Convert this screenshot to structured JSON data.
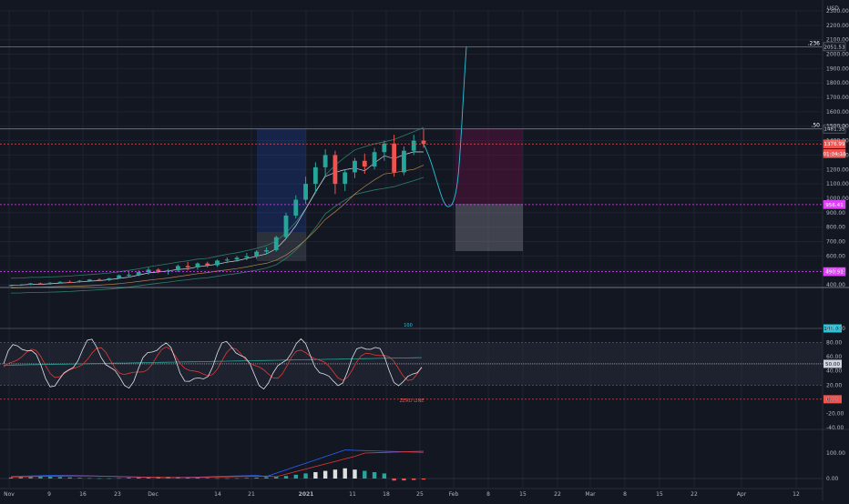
{
  "currency": "USD",
  "colors": {
    "background": "#131722",
    "up": "#26a69a",
    "down": "#ef5350",
    "grid": "#1f2330",
    "axis_text": "#b2b5be",
    "rsi": "#e0e3eb",
    "signal": "#e53935",
    "ema_line": "#2e7d6b",
    "magenta": "#e040fb",
    "teal": "#26c6da",
    "long_box": "#2962ff",
    "short_box": "#880e4f"
  },
  "price_axis": {
    "ticks": [
      "2300.00",
      "2200.00",
      "2100.00",
      "2000.00",
      "1900.00",
      "1800.00",
      "1700.00",
      "1600.00",
      "1500.00",
      "1400.00",
      "1300.00",
      "1200.00",
      "1100.00",
      "1000.00",
      "900.00",
      "800.00",
      "700.00",
      "600.00",
      "500.00",
      "400.00"
    ],
    "labels": [
      {
        "text": "2051.53",
        "kind": "box",
        "value": 2051.53
      },
      {
        "text": "1481.35",
        "kind": "box",
        "value": 1481.35
      },
      {
        "text": "1376.99",
        "kind": "red",
        "value": 1376.99
      },
      {
        "text": "01:34:10",
        "kind": "red",
        "value": 1310
      },
      {
        "text": "956.41",
        "kind": "magenta",
        "value": 956.41
      },
      {
        "text": "490.91",
        "kind": "magenta",
        "value": 490.91
      }
    ],
    "fib_labels": [
      {
        "text": ".236",
        "value": 2051.53
      },
      {
        "text": ".50",
        "value": 1481.35
      }
    ]
  },
  "rsi_panel": {
    "label_top": "100",
    "zero_line_label": "ZERO LINE",
    "ticks": [
      "100.00",
      "80.00",
      "60.00",
      "40.00",
      "20.00",
      "0.00",
      "-20.00",
      "-40.00"
    ],
    "current_label": "50.00",
    "top_label": "100.00"
  },
  "macd_panel": {
    "ticks": [
      "100.00",
      "0.00"
    ]
  },
  "time_axis": {
    "labels": [
      "Nov",
      "9",
      "16",
      "23",
      "Dec",
      "14",
      "21",
      "2021",
      "11",
      "18",
      "25",
      "Feb",
      "8",
      "15",
      "22",
      "Mar",
      "8",
      "15",
      "22",
      "Apr",
      "12"
    ]
  },
  "chart_data": {
    "type": "candlestick",
    "x_start": "2020-11-01",
    "interval": "2 days",
    "ylim": [
      400,
      2300
    ],
    "candles": [
      [
        395,
        400,
        390,
        398
      ],
      [
        398,
        405,
        392,
        400
      ],
      [
        400,
        412,
        396,
        410
      ],
      [
        410,
        415,
        402,
        405
      ],
      [
        405,
        418,
        400,
        414
      ],
      [
        414,
        425,
        410,
        420
      ],
      [
        420,
        430,
        412,
        418
      ],
      [
        418,
        432,
        414,
        428
      ],
      [
        428,
        440,
        420,
        436
      ],
      [
        436,
        445,
        428,
        432
      ],
      [
        432,
        448,
        425,
        445
      ],
      [
        445,
        470,
        440,
        465
      ],
      [
        465,
        490,
        450,
        470
      ],
      [
        470,
        500,
        460,
        488
      ],
      [
        488,
        520,
        470,
        505
      ],
      [
        505,
        515,
        480,
        492
      ],
      [
        492,
        510,
        470,
        500
      ],
      [
        500,
        540,
        488,
        530
      ],
      [
        530,
        560,
        500,
        520
      ],
      [
        520,
        555,
        505,
        548
      ],
      [
        548,
        560,
        520,
        535
      ],
      [
        535,
        575,
        525,
        568
      ],
      [
        568,
        590,
        550,
        575
      ],
      [
        575,
        600,
        560,
        588
      ],
      [
        588,
        620,
        570,
        598
      ],
      [
        598,
        640,
        580,
        630
      ],
      [
        630,
        660,
        610,
        640
      ],
      [
        640,
        740,
        630,
        730
      ],
      [
        730,
        900,
        720,
        880
      ],
      [
        880,
        1020,
        860,
        990
      ],
      [
        990,
        1150,
        960,
        1100
      ],
      [
        1100,
        1250,
        1040,
        1215
      ],
      [
        1215,
        1340,
        1150,
        1300
      ],
      [
        1300,
        1330,
        1030,
        1100
      ],
      [
        1100,
        1200,
        1050,
        1180
      ],
      [
        1180,
        1280,
        1140,
        1260
      ],
      [
        1260,
        1310,
        1170,
        1220
      ],
      [
        1220,
        1350,
        1200,
        1320
      ],
      [
        1320,
        1400,
        1260,
        1380
      ],
      [
        1380,
        1440,
        1150,
        1180
      ],
      [
        1180,
        1360,
        1160,
        1330
      ],
      [
        1330,
        1440,
        1300,
        1400
      ],
      [
        1400,
        1480,
        1350,
        1377
      ]
    ],
    "projection": {
      "from": [
        1377,
        1377
      ],
      "min": 950,
      "max": 2051.53
    },
    "levels": [
      {
        "value": 2051.53,
        "label": ".236"
      },
      {
        "value": 1481.35,
        "label": ".50"
      },
      {
        "value": 1376.99
      },
      {
        "value": 956.41
      },
      {
        "value": 490.91
      }
    ]
  }
}
